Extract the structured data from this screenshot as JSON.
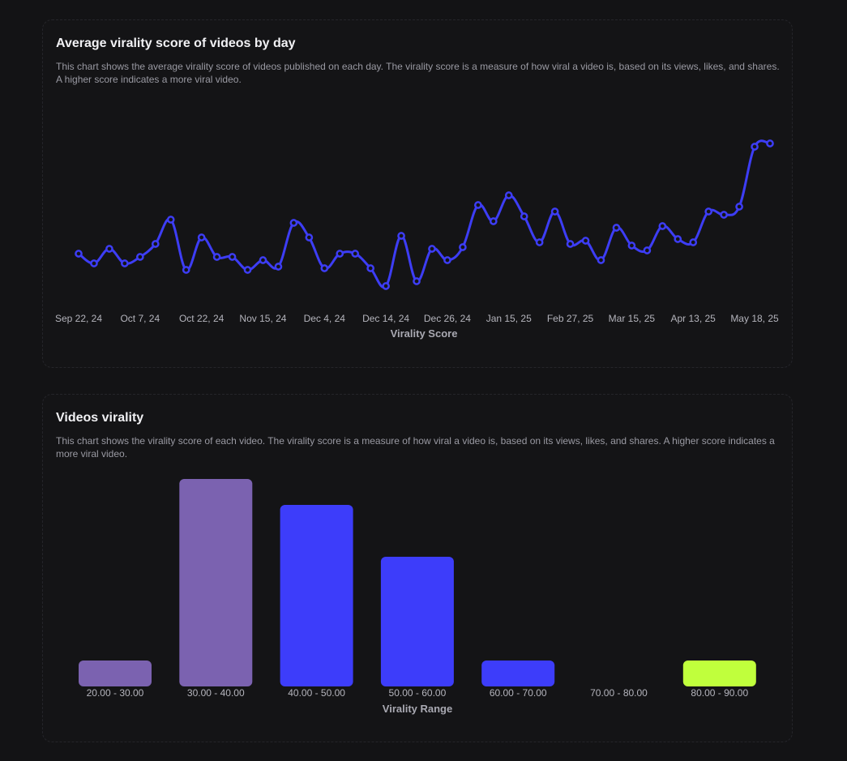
{
  "colors": {
    "background": "#131315",
    "line": "#3d3df5",
    "bar_purple": "#7b62b0",
    "bar_blue": "#3d3dfa",
    "bar_green": "#c0ff3c"
  },
  "line_chart": {
    "title": "Average virality score of videos by day",
    "description": "This chart shows the average virality score of videos published on each day. The virality score is a measure of how viral a video is, based on its views, likes, and shares. A higher score indicates a more viral video."
  },
  "bar_chart": {
    "title": "Videos virality",
    "description": "This chart shows the virality score of each video. The virality score is a measure of how viral a video is, based on its views, likes, and shares. A higher score indicates a more viral video."
  },
  "chart_data": [
    {
      "type": "line",
      "title": "Average virality score of videos by day",
      "xlabel": "Virality Score",
      "ylabel": "",
      "ylim": [
        30,
        90
      ],
      "grid": false,
      "x_tick_labels": [
        "Sep 22, 24",
        "Oct 7, 24",
        "Oct 22, 24",
        "Nov 15, 24",
        "Dec 4, 24",
        "Dec 14, 24",
        "Dec 26, 24",
        "Jan 15, 25",
        "Feb 27, 25",
        "Mar 15, 25",
        "Apr 13, 25",
        "May 18, 25"
      ],
      "series": [
        {
          "values": [
            45.5,
            42.5,
            47,
            42.5,
            44.5,
            48.5,
            56,
            40.5,
            50.5,
            44.5,
            44.5,
            40.5,
            43.5,
            41.5,
            55,
            50.5,
            41,
            45.5,
            45.5,
            41,
            35.5,
            51,
            37,
            47,
            43.5,
            47.5,
            60.5,
            55.5,
            63.5,
            57,
            49,
            58.5,
            48.5,
            49.5,
            43.5,
            53.5,
            48,
            46.5,
            54,
            50,
            49,
            58.5,
            57.5,
            60,
            78.5,
            79.5
          ]
        }
      ]
    },
    {
      "type": "bar",
      "title": "Videos virality",
      "xlabel": "Virality Range",
      "ylabel": "",
      "ylim": [
        0,
        40
      ],
      "grid": false,
      "categories": [
        "20.00 - 30.00",
        "30.00 - 40.00",
        "40.00 - 50.00",
        "50.00 - 60.00",
        "60.00 - 70.00",
        "70.00 - 80.00",
        "80.00 - 90.00"
      ],
      "values": [
        5,
        40,
        35,
        25,
        5,
        0,
        5
      ],
      "bar_colors": [
        "#7b62b0",
        "#7b62b0",
        "#3d3dfa",
        "#3d3dfa",
        "#3d3dfa",
        "#3d3dfa",
        "#c0ff3c"
      ]
    }
  ]
}
